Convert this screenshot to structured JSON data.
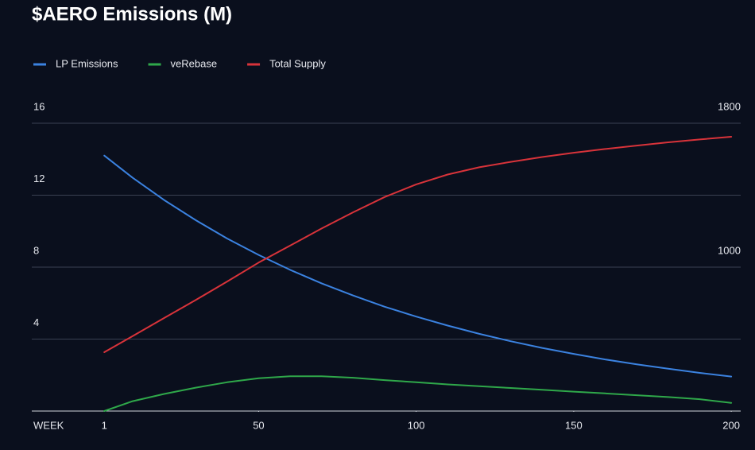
{
  "chart_data": {
    "type": "line",
    "title": "$AERO Emissions (M)",
    "xlabel": "WEEK",
    "x": [
      1,
      10,
      20,
      30,
      40,
      50,
      60,
      70,
      80,
      90,
      100,
      110,
      120,
      130,
      140,
      150,
      160,
      170,
      180,
      190,
      200
    ],
    "series": [
      {
        "name": "LP Emissions",
        "color": "#3b82e0",
        "values": [
          14.2,
          12.97,
          11.73,
          10.61,
          9.59,
          8.68,
          7.85,
          7.1,
          6.42,
          5.8,
          5.25,
          4.75,
          4.29,
          3.88,
          3.51,
          3.18,
          2.87,
          2.6,
          2.35,
          2.12,
          1.92
        ]
      },
      {
        "name": "veRebase",
        "color": "#2fa84a",
        "values": [
          0,
          0.55,
          0.95,
          1.3,
          1.6,
          1.82,
          1.93,
          1.93,
          1.85,
          1.72,
          1.6,
          1.48,
          1.38,
          1.28,
          1.18,
          1.08,
          0.98,
          0.88,
          0.78,
          0.66,
          0.45
        ]
      },
      {
        "name": "Total Supply",
        "color": "#d8333a",
        "axis": "y2",
        "values": [
          527,
          617,
          717,
          817,
          920,
          1025,
          1120,
          1215,
          1305,
          1390,
          1460,
          1515,
          1555,
          1585,
          1612,
          1636,
          1657,
          1676,
          1694,
          1710,
          1725
        ]
      }
    ],
    "xlim": [
      -22,
      203
    ],
    "xticks": [
      1,
      50,
      100,
      150,
      200
    ],
    "ylim": [
      0,
      16
    ],
    "yticks": [
      4,
      8,
      12,
      16
    ],
    "y2lim": [
      200,
      1800
    ],
    "y2ticks": [
      1000,
      1800
    ],
    "grid": true,
    "legend": "top-left"
  }
}
